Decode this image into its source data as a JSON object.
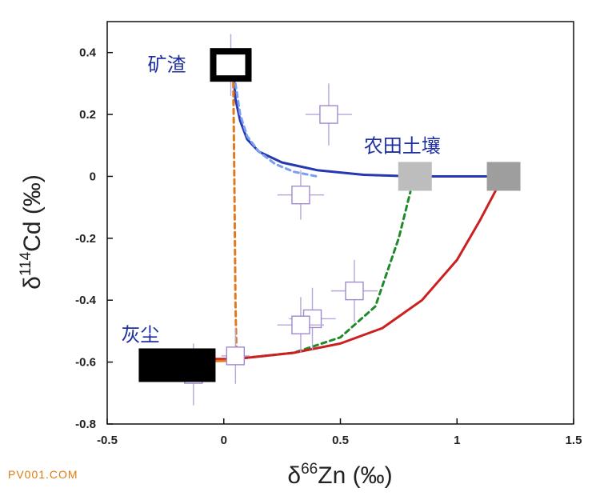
{
  "chart_data": {
    "type": "scatter",
    "xlabel": {
      "prefix": "δ",
      "sup": "66",
      "main": "Zn (‰)"
    },
    "ylabel": {
      "prefix": "δ",
      "sup": "114",
      "main": "Cd (‰)"
    },
    "xlim": [
      -0.5,
      1.5
    ],
    "ylim": [
      -0.8,
      0.5
    ],
    "x_ticks": [
      {
        "v": -0.5,
        "label": "-0.5"
      },
      {
        "v": 0,
        "label": "0"
      },
      {
        "v": 0.5,
        "label": "0.5"
      },
      {
        "v": 1,
        "label": "1"
      },
      {
        "v": 1.5,
        "label": "1.5"
      }
    ],
    "y_ticks": [
      {
        "v": 0.4,
        "label": "0.4"
      },
      {
        "v": 0.2,
        "label": "0.2"
      },
      {
        "v": 0,
        "label": "0"
      },
      {
        "v": -0.2,
        "label": "-0.2"
      },
      {
        "v": -0.4,
        "label": "-0.4"
      },
      {
        "v": -0.6,
        "label": "-0.6"
      },
      {
        "v": -0.8,
        "label": "-0.8"
      }
    ],
    "endmembers": [
      {
        "label": "矿渣",
        "x": 0.03,
        "y": 0.36,
        "color": "#000000"
      },
      {
        "label": "灰尘",
        "x": -0.2,
        "y": -0.61,
        "color": "#000000"
      },
      {
        "label": "农田土壤",
        "x": 0.82,
        "y": 0.0,
        "color": "#bdbdbd"
      },
      {
        "label": "",
        "x": 1.2,
        "y": 0.0,
        "color": "#9e9e9e"
      }
    ],
    "samples": [
      {
        "x": 0.03,
        "y": 0.36,
        "xerr": 0.04,
        "yerr": 0.1
      },
      {
        "x": 0.45,
        "y": 0.2,
        "xerr": 0.1,
        "yerr": 0.1
      },
      {
        "x": 0.33,
        "y": -0.06,
        "xerr": 0.1,
        "yerr": 0.08
      },
      {
        "x": 0.56,
        "y": -0.37,
        "xerr": 0.1,
        "yerr": 0.1
      },
      {
        "x": 0.38,
        "y": -0.46,
        "xerr": 0.1,
        "yerr": 0.1
      },
      {
        "x": 0.33,
        "y": -0.48,
        "xerr": 0.1,
        "yerr": 0.09
      },
      {
        "x": 0.05,
        "y": -0.58,
        "xerr": 0.06,
        "yerr": 0.09
      },
      {
        "x": -0.13,
        "y": -0.64,
        "xerr": 0.09,
        "yerr": 0.1
      }
    ],
    "mixing_lines": [
      {
        "color": "#2438b0",
        "style": "solid",
        "points": [
          [
            0.04,
            0.35
          ],
          [
            0.05,
            0.25
          ],
          [
            0.07,
            0.18
          ],
          [
            0.1,
            0.12
          ],
          [
            0.15,
            0.08
          ],
          [
            0.25,
            0.045
          ],
          [
            0.4,
            0.02
          ],
          [
            0.6,
            0.005
          ],
          [
            0.82,
            0.0
          ],
          [
            1.2,
            0.0
          ]
        ]
      },
      {
        "color": "#7a9ef0",
        "style": "dashed",
        "points": [
          [
            0.05,
            0.3
          ],
          [
            0.07,
            0.2
          ],
          [
            0.1,
            0.13
          ],
          [
            0.15,
            0.08
          ],
          [
            0.22,
            0.04
          ],
          [
            0.3,
            0.015
          ],
          [
            0.4,
            0.0
          ]
        ]
      },
      {
        "color": "#e07a20",
        "style": "dashed",
        "points": [
          [
            0.04,
            0.36
          ],
          [
            0.045,
            0.0
          ],
          [
            0.05,
            -0.4
          ],
          [
            0.055,
            -0.6
          ]
        ]
      },
      {
        "color": "#1f8a2a",
        "style": "dashed",
        "points": [
          [
            0.05,
            -0.59
          ],
          [
            0.3,
            -0.57
          ],
          [
            0.5,
            -0.52
          ],
          [
            0.65,
            -0.42
          ],
          [
            0.75,
            -0.2
          ],
          [
            0.8,
            -0.05
          ]
        ]
      },
      {
        "color": "#cc1f1f",
        "style": "solid",
        "points": [
          [
            -0.2,
            -0.59
          ],
          [
            0.05,
            -0.59
          ],
          [
            0.3,
            -0.57
          ],
          [
            0.5,
            -0.54
          ],
          [
            0.68,
            -0.49
          ],
          [
            0.85,
            -0.4
          ],
          [
            1.0,
            -0.27
          ],
          [
            1.1,
            -0.14
          ],
          [
            1.17,
            -0.04
          ]
        ]
      },
      {
        "color": "#e07a20",
        "style": "solid",
        "points": [
          [
            -0.25,
            -0.6
          ],
          [
            0.05,
            -0.595
          ]
        ]
      }
    ]
  },
  "watermark": "PV001.COM"
}
